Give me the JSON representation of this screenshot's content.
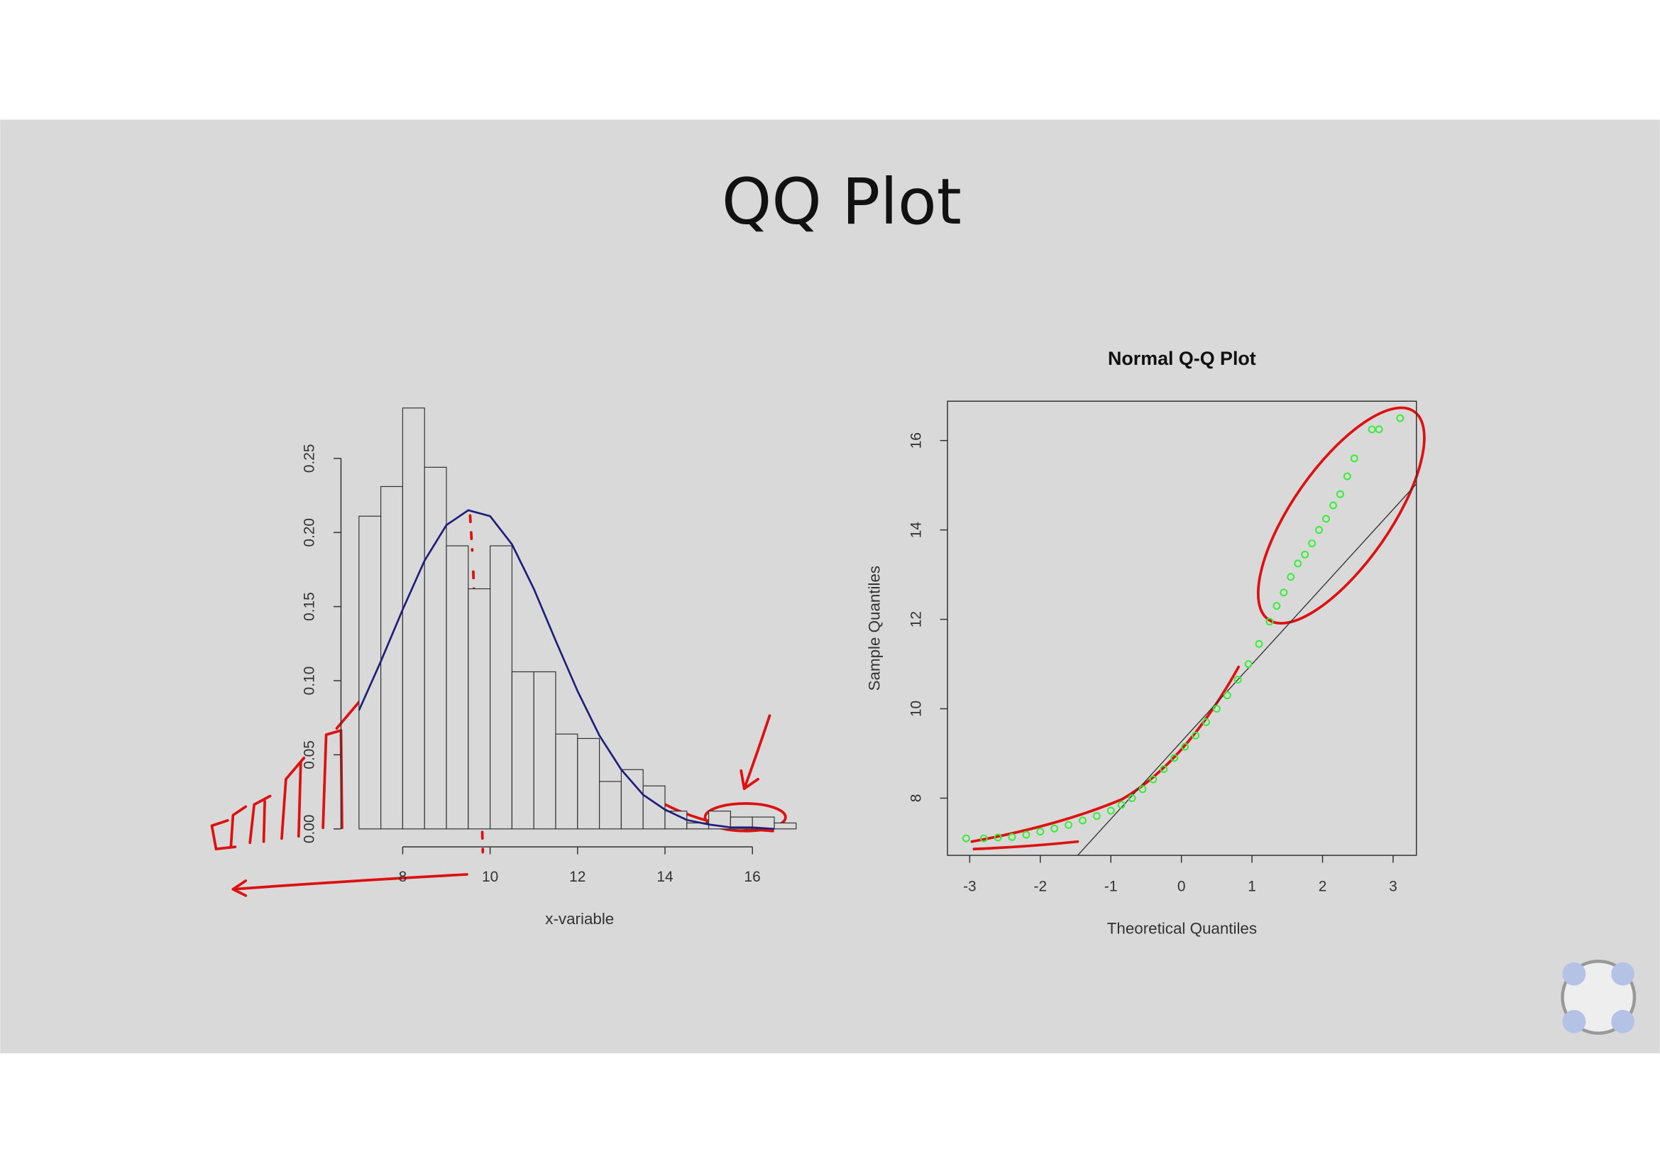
{
  "slide": {
    "title": "QQ Plot"
  },
  "chart_data": [
    {
      "type": "histogram",
      "xlabel": "x-variable",
      "bins": [
        7.0,
        7.5,
        8.0,
        8.5,
        9.0,
        9.5,
        10.0,
        10.5,
        11.0,
        11.5,
        12.0,
        12.5,
        13.0,
        13.5,
        14.0,
        14.5,
        15.0,
        15.5,
        16.0,
        16.5,
        17.0
      ],
      "values": [
        0.211,
        0.231,
        0.284,
        0.244,
        0.191,
        0.162,
        0.191,
        0.106,
        0.106,
        0.064,
        0.061,
        0.032,
        0.04,
        0.029,
        0.012,
        0.004,
        0.012,
        0.008,
        0.008,
        0.004
      ],
      "color": "#d9d9d9",
      "density_curve": {
        "color": "#1f1f7a",
        "x": [
          7.0,
          7.5,
          8.0,
          8.5,
          9.0,
          9.5,
          10.0,
          10.5,
          11.0,
          11.5,
          12.0,
          12.5,
          13.0,
          13.5,
          14.0,
          14.5,
          15.0,
          15.5,
          16.0,
          16.5
        ],
        "values": [
          0.08,
          0.113,
          0.148,
          0.181,
          0.205,
          0.215,
          0.211,
          0.192,
          0.162,
          0.127,
          0.093,
          0.063,
          0.04,
          0.023,
          0.013,
          0.006,
          0.003,
          0.001,
          0.001,
          0.0
        ]
      },
      "xlim": [
        7,
        17
      ],
      "ylim": [
        0,
        0.285
      ],
      "xticks": [
        8,
        10,
        12,
        14,
        16
      ],
      "yticks": [
        {
          "value": 0,
          "label": "0.00"
        },
        0.05,
        {
          "value": 0.1,
          "label": "0.10"
        },
        0.15,
        {
          "value": 0.2,
          "label": "0.20"
        },
        0.25
      ]
    },
    {
      "type": "scatter",
      "title": "Normal Q-Q Plot",
      "xlabel": "Theoretical Quantiles",
      "ylabel": "Sample Quantiles",
      "color": "#33ee33",
      "x": [
        -3.05,
        -2.8,
        -2.6,
        -2.4,
        -2.2,
        -2.0,
        -1.8,
        -1.6,
        -1.4,
        -1.2,
        -1.0,
        -0.85,
        -0.7,
        -0.55,
        -0.4,
        -0.25,
        -0.1,
        0.05,
        0.2,
        0.35,
        0.5,
        0.65,
        0.8,
        0.95,
        1.1,
        1.25,
        1.35,
        1.45,
        1.55,
        1.65,
        1.75,
        1.85,
        1.95,
        2.05,
        2.15,
        2.25,
        2.35,
        2.45,
        2.7,
        2.8,
        3.1
      ],
      "values": [
        7.1,
        7.1,
        7.12,
        7.13,
        7.18,
        7.25,
        7.32,
        7.4,
        7.5,
        7.6,
        7.72,
        7.85,
        8.0,
        8.2,
        8.42,
        8.65,
        8.9,
        9.15,
        9.4,
        9.7,
        10.0,
        10.3,
        10.65,
        11.0,
        11.45,
        11.95,
        12.3,
        12.6,
        12.95,
        13.25,
        13.45,
        13.7,
        14.0,
        14.25,
        14.55,
        14.8,
        15.2,
        15.6,
        16.25,
        16.25,
        16.5
      ],
      "reference_line": {
        "color": "#333333",
        "x": [
          -1.47,
          3.33
        ],
        "values": [
          6.72,
          15.03
        ]
      },
      "xlim": [
        -3.315,
        3.33
      ],
      "ylim": [
        6.72,
        16.88
      ],
      "xticks": [
        -3,
        -2,
        -1,
        0,
        1,
        2,
        3
      ],
      "yticks": [
        8,
        10,
        12,
        14,
        16
      ]
    }
  ]
}
